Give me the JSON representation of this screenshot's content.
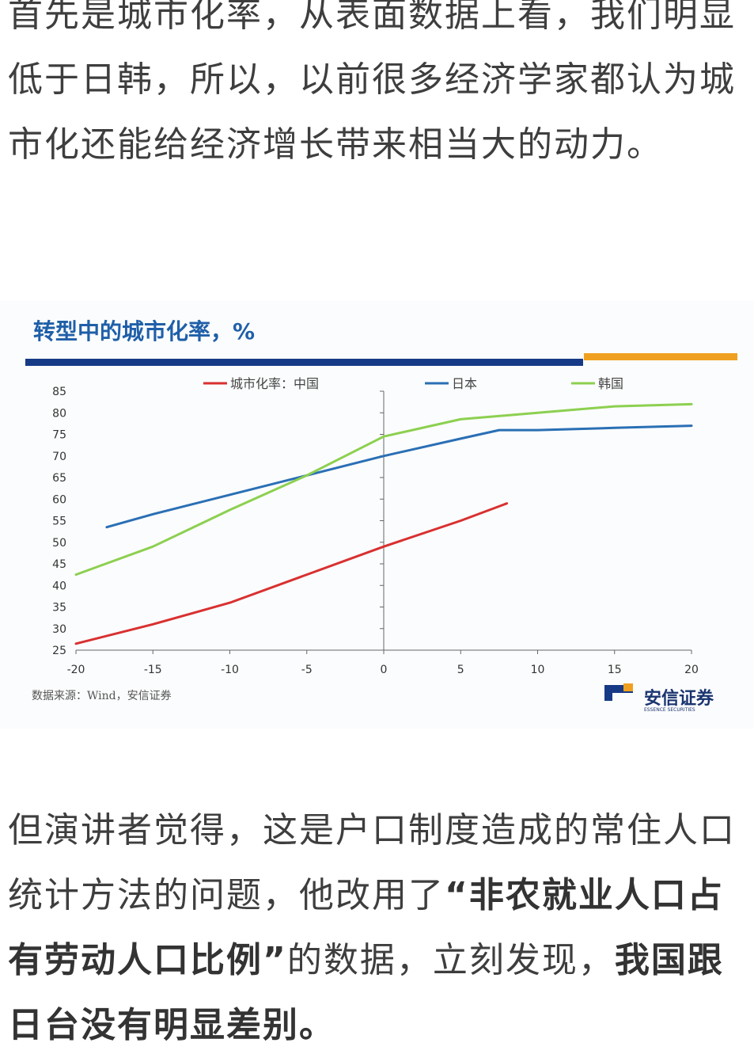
{
  "article": {
    "para1": "首先是城市化率，从表面数据上看，我们明显低于日韩，所以，以前很多经济学家都认为城市化还能给经济增长带来相当大的动力。",
    "para2_normal": "但演讲者觉得，这是户口制度造成的常住人口统计方法的问题，他改用了",
    "para2_bold": "“非农就业人口占有劳动人口比例”",
    "para2_normal2": "的数据，立刻发现，",
    "para2_bold2": "我国跟日台没有明显差别。"
  },
  "chart_data": {
    "type": "line",
    "title": "转型中的城市化率，%",
    "source": "数据来源：Wind，安信证券",
    "brand": {
      "name": "安信证券",
      "sub": "ESSENCE SECURITIES"
    },
    "xlim": [
      -20,
      20
    ],
    "ylim": [
      25,
      85
    ],
    "xticks": [
      -20,
      -15,
      -10,
      -5,
      0,
      5,
      10,
      15,
      20
    ],
    "yticks": [
      85,
      80,
      75,
      70,
      65,
      60,
      55,
      50,
      45,
      40,
      35,
      30,
      25
    ],
    "legend_position": "top",
    "colors": {
      "title": "#1f5fa8",
      "bar_navy": "#163a86",
      "bar_orange": "#f0a020"
    },
    "series": [
      {
        "name": "城市化率：中国",
        "color": "#d93030",
        "x": [
          -20,
          -15,
          -10,
          -5,
          0,
          5,
          8
        ],
        "y": [
          26.5,
          31,
          36,
          42.5,
          49,
          55,
          59
        ]
      },
      {
        "name": "日本",
        "color": "#2a6fb5",
        "x": [
          -18,
          -15,
          -10,
          -5,
          0,
          5,
          7.5,
          10,
          15,
          20
        ],
        "y": [
          53.5,
          56.5,
          61,
          65.5,
          70,
          74,
          76,
          76,
          76.5,
          77
        ]
      },
      {
        "name": "韩国",
        "color": "#8cd050",
        "x": [
          -20,
          -15,
          -10,
          -5,
          0,
          5,
          10,
          15,
          20
        ],
        "y": [
          42.5,
          49,
          57.5,
          65.5,
          74.5,
          78.5,
          80,
          81.5,
          82
        ]
      }
    ]
  }
}
